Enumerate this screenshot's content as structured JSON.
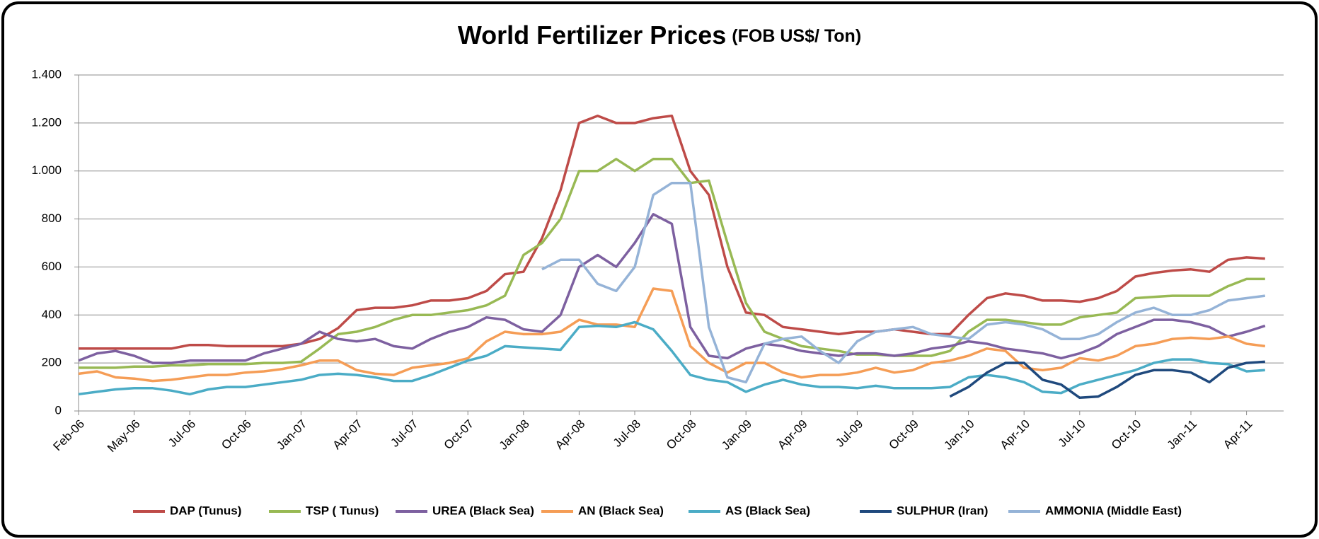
{
  "chart_data": {
    "type": "line",
    "title": "World Fertilizer Prices",
    "subtitle": "(FOB US$/ Ton)",
    "categories": [
      "Feb-06",
      null,
      null,
      "May-06",
      null,
      null,
      "Jul-06",
      null,
      null,
      "Oct-06",
      null,
      null,
      "Jan-07",
      null,
      null,
      "Apr-07",
      null,
      null,
      "Jul-07",
      null,
      null,
      "Oct-07",
      null,
      null,
      "Jan-08",
      null,
      null,
      "Apr-08",
      null,
      null,
      "Jul-08",
      null,
      null,
      "Oct-08",
      null,
      null,
      "Jan-09",
      null,
      null,
      "Apr-09",
      null,
      null,
      "Jul-09",
      null,
      null,
      "Oct-09",
      null,
      null,
      "Jan-10",
      null,
      null,
      "Apr-10",
      null,
      null,
      "Jul-10",
      null,
      null,
      "Oct-10",
      null,
      null,
      "Jan-11",
      null,
      null,
      "Apr-11",
      null
    ],
    "series": [
      {
        "name": "DAP (Tunus)",
        "color": "#be4b48",
        "values": [
          260,
          260,
          260,
          260,
          260,
          260,
          275,
          275,
          270,
          270,
          270,
          270,
          280,
          300,
          345,
          420,
          430,
          430,
          440,
          460,
          460,
          470,
          500,
          570,
          580,
          720,
          920,
          1200,
          1230,
          1200,
          1200,
          1220,
          1230,
          1000,
          900,
          600,
          410,
          400,
          350,
          340,
          330,
          320,
          330,
          330,
          340,
          330,
          320,
          320,
          400,
          470,
          490,
          480,
          460,
          460,
          455,
          470,
          500,
          560,
          575,
          585,
          590,
          580,
          630,
          640,
          635
        ]
      },
      {
        "name": "TSP ( Tunus)",
        "color": "#98b954",
        "values": [
          180,
          180,
          180,
          185,
          185,
          190,
          190,
          195,
          195,
          195,
          200,
          200,
          205,
          260,
          320,
          330,
          350,
          380,
          400,
          400,
          410,
          420,
          440,
          480,
          650,
          700,
          800,
          1000,
          1000,
          1050,
          1000,
          1050,
          1050,
          950,
          960,
          700,
          450,
          330,
          300,
          270,
          260,
          250,
          235,
          235,
          230,
          230,
          230,
          250,
          330,
          380,
          380,
          370,
          360,
          360,
          390,
          400,
          410,
          470,
          475,
          480,
          480,
          480,
          520,
          550,
          550
        ]
      },
      {
        "name": "UREA (Black Sea)",
        "color": "#7d60a0",
        "values": [
          210,
          240,
          250,
          230,
          200,
          200,
          210,
          210,
          210,
          210,
          240,
          260,
          280,
          330,
          300,
          290,
          300,
          270,
          260,
          300,
          330,
          350,
          390,
          380,
          340,
          330,
          400,
          600,
          650,
          600,
          700,
          820,
          780,
          350,
          230,
          220,
          260,
          280,
          270,
          250,
          240,
          230,
          240,
          240,
          230,
          240,
          260,
          270,
          290,
          280,
          260,
          250,
          240,
          220,
          240,
          270,
          320,
          350,
          380,
          380,
          370,
          350,
          310,
          330,
          355
        ]
      },
      {
        "name": "AN (Black Sea)",
        "color": "#f59d56",
        "values": [
          155,
          165,
          140,
          135,
          125,
          130,
          140,
          150,
          150,
          160,
          165,
          175,
          190,
          210,
          210,
          170,
          155,
          150,
          180,
          190,
          200,
          220,
          290,
          330,
          320,
          320,
          330,
          380,
          360,
          360,
          350,
          510,
          500,
          270,
          200,
          160,
          200,
          200,
          160,
          140,
          150,
          150,
          160,
          180,
          160,
          170,
          200,
          210,
          230,
          260,
          250,
          180,
          170,
          180,
          220,
          210,
          230,
          270,
          280,
          300,
          305,
          300,
          310,
          280,
          270
        ]
      },
      {
        "name": "AS (Black Sea)",
        "color": "#4bacc6",
        "values": [
          70,
          80,
          90,
          95,
          95,
          85,
          70,
          90,
          100,
          100,
          110,
          120,
          130,
          150,
          155,
          150,
          140,
          125,
          125,
          150,
          180,
          210,
          230,
          270,
          265,
          260,
          255,
          350,
          355,
          350,
          370,
          340,
          250,
          150,
          130,
          120,
          80,
          110,
          130,
          110,
          100,
          100,
          95,
          105,
          95,
          95,
          95,
          100,
          140,
          150,
          140,
          120,
          80,
          75,
          110,
          130,
          150,
          170,
          200,
          215,
          215,
          200,
          195,
          165,
          170
        ]
      },
      {
        "name": "SULPHUR (Iran)",
        "color": "#1f497d",
        "values": [
          null,
          null,
          null,
          null,
          null,
          null,
          null,
          null,
          null,
          null,
          null,
          null,
          null,
          null,
          null,
          null,
          null,
          null,
          null,
          null,
          null,
          null,
          null,
          null,
          null,
          null,
          null,
          null,
          null,
          null,
          null,
          null,
          null,
          null,
          null,
          null,
          null,
          null,
          null,
          null,
          null,
          null,
          null,
          null,
          null,
          null,
          null,
          60,
          100,
          160,
          200,
          200,
          130,
          110,
          55,
          60,
          100,
          150,
          170,
          170,
          160,
          120,
          180,
          200,
          205
        ]
      },
      {
        "name": "AMMONIA (Middle East)",
        "color": "#95b3d7",
        "values": [
          null,
          null,
          null,
          null,
          null,
          null,
          null,
          null,
          null,
          null,
          null,
          null,
          null,
          null,
          null,
          null,
          null,
          null,
          null,
          null,
          null,
          null,
          null,
          null,
          null,
          590,
          630,
          630,
          530,
          500,
          600,
          900,
          950,
          950,
          350,
          140,
          120,
          280,
          300,
          310,
          250,
          200,
          290,
          330,
          340,
          350,
          320,
          310,
          300,
          360,
          370,
          360,
          340,
          300,
          300,
          320,
          370,
          410,
          430,
          400,
          400,
          420,
          460,
          470,
          480
        ]
      }
    ],
    "ylim": [
      0,
      1400
    ],
    "yticks": [
      0,
      200,
      400,
      600,
      800,
      {
        "value": 1000,
        "label": "1.000"
      },
      {
        "value": 1200,
        "label": "1.200"
      },
      {
        "value": 1400,
        "label": "1.400"
      }
    ],
    "grid": true,
    "legend": "bottom"
  }
}
